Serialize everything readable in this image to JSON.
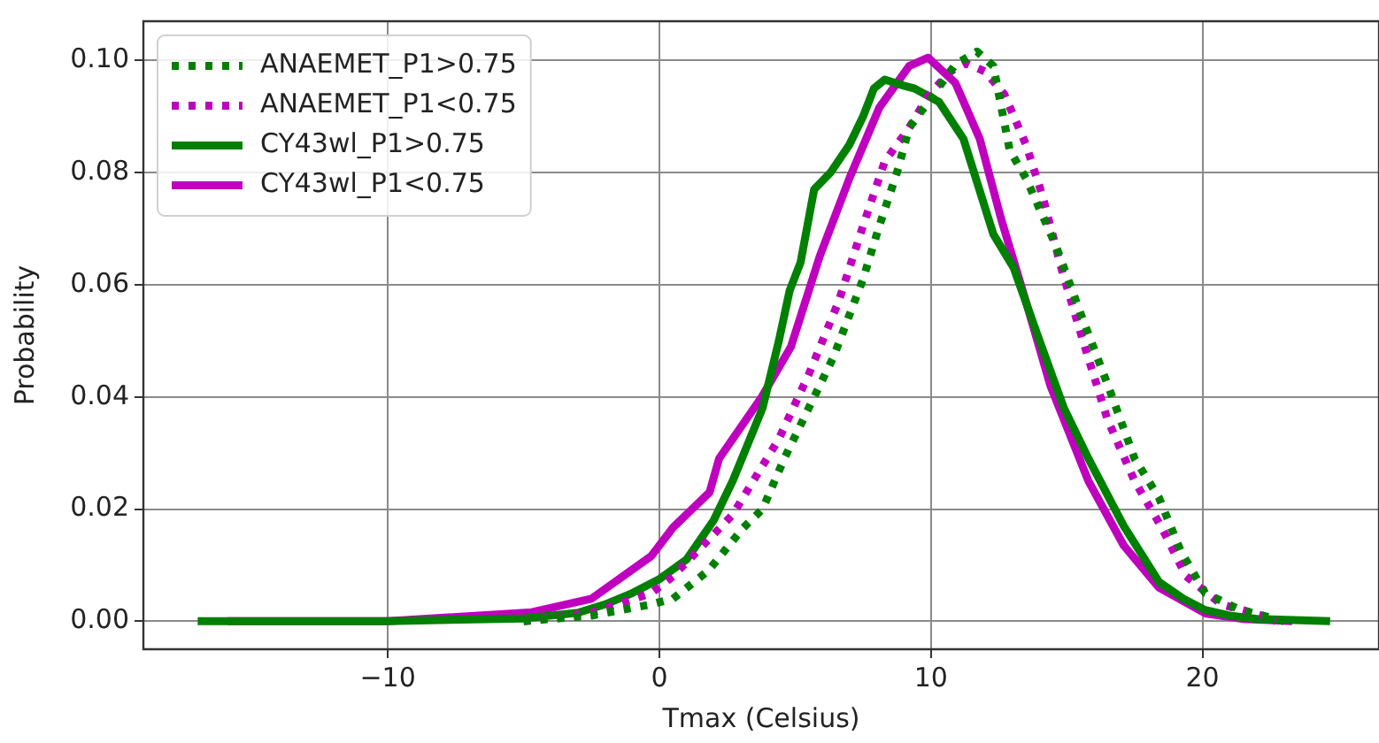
{
  "chart_data": {
    "type": "line",
    "xlabel": "Tmax (Celsius)",
    "ylabel": "Probability",
    "xlim": [
      -19,
      26.5
    ],
    "ylim": [
      -0.005,
      0.107
    ],
    "xticks": [
      {
        "value": -10,
        "label": "−10"
      },
      0,
      10,
      20
    ],
    "yticks": [
      {
        "value": 0,
        "label": "0.00"
      },
      {
        "value": 0.02,
        "label": "0.02"
      },
      {
        "value": 0.04,
        "label": "0.04"
      },
      {
        "value": 0.06,
        "label": "0.06"
      },
      {
        "value": 0.08,
        "label": "0.08"
      },
      {
        "value": 0.1,
        "label": "0.10"
      }
    ],
    "grid": true,
    "legend": "top left",
    "marker": "none",
    "series": [
      {
        "name": "ANAEMET_P1>0.75",
        "color": "#008000",
        "line_style": "dotted",
        "x": [
          -5,
          -2.5,
          -0.3,
          0.5,
          1.8,
          3.1,
          3.8,
          4.6,
          5.5,
          6.4,
          7.5,
          8.1,
          8.75,
          9.2,
          9.9,
          10.9,
          11.7,
          12.3,
          12.9,
          13.5,
          14.6,
          15.5,
          16.6,
          17.5,
          18.4,
          19.2,
          20.1,
          21.4,
          23
        ],
        "values": [
          0,
          0.001,
          0.003,
          0.004,
          0.009,
          0.0167,
          0.02,
          0.029,
          0.038,
          0.047,
          0.061,
          0.0705,
          0.08,
          0.088,
          0.0926,
          0.0993,
          0.1016,
          0.099,
          0.084,
          0.079,
          0.067,
          0.055,
          0.041,
          0.029,
          0.022,
          0.0125,
          0.005,
          0.002,
          0
        ]
      },
      {
        "name": "ANAEMET_P1<0.75",
        "color": "#bf00bf",
        "line_style": "dotted",
        "x": [
          -5,
          -2.5,
          -0.3,
          0.5,
          2.7,
          4.4,
          5.5,
          6.6,
          7.5,
          8.3,
          9.2,
          9.9,
          10.7,
          11.3,
          12,
          12.7,
          13.5,
          14.1,
          14.8,
          15.6,
          16.5,
          17.5,
          18.5,
          19.4,
          20.7,
          22.2,
          22.7
        ],
        "values": [
          0,
          0.0015,
          0.005,
          0.008,
          0.019,
          0.0325,
          0.044,
          0.057,
          0.0705,
          0.082,
          0.088,
          0.0937,
          0.098,
          0.0995,
          0.098,
          0.094,
          0.085,
          0.076,
          0.063,
          0.05,
          0.036,
          0.025,
          0.0167,
          0.008,
          0.003,
          0.001,
          0
        ]
      },
      {
        "name": "CY43wl_P1>0.75",
        "color": "#008000",
        "line_style": "solid",
        "x": [
          -17,
          -10,
          -5,
          -3,
          -2,
          -1,
          0,
          1,
          2,
          2.7,
          3.8,
          4.4,
          4.8,
          5.2,
          5.7,
          6.3,
          7,
          7.5,
          7.9,
          8.3,
          9,
          9.4,
          10.3,
          11.2,
          12.3,
          13.05,
          14,
          14.9,
          15.8,
          17.1,
          18.4,
          19.3,
          20.1,
          21,
          22,
          24.7
        ],
        "values": [
          0,
          0,
          0.0005,
          0.0015,
          0.003,
          0.005,
          0.0075,
          0.011,
          0.018,
          0.025,
          0.038,
          0.05,
          0.059,
          0.064,
          0.077,
          0.08,
          0.085,
          0.09,
          0.095,
          0.0966,
          0.0955,
          0.095,
          0.0926,
          0.086,
          0.069,
          0.063,
          0.05,
          0.038,
          0.029,
          0.017,
          0.007,
          0.004,
          0.002,
          0.001,
          0.0004,
          0
        ]
      },
      {
        "name": "CY43wl_P1<0.75",
        "color": "#bf00bf",
        "line_style": "solid",
        "x": [
          -15.9,
          -10,
          -4.7,
          -2.5,
          -0.3,
          0.5,
          1.85,
          2.2,
          3.77,
          4.85,
          5.9,
          7,
          8.1,
          9.2,
          9.9,
          10.9,
          11.8,
          12.6,
          13.5,
          14.4,
          15.8,
          17.1,
          18.4,
          20.1,
          21.5,
          23.3
        ],
        "values": [
          0,
          0,
          0.0016,
          0.004,
          0.0116,
          0.0167,
          0.023,
          0.029,
          0.04,
          0.049,
          0.065,
          0.079,
          0.0916,
          0.099,
          0.1005,
          0.096,
          0.086,
          0.0715,
          0.057,
          0.042,
          0.025,
          0.0135,
          0.006,
          0.0014,
          0.0004,
          0
        ]
      }
    ]
  }
}
